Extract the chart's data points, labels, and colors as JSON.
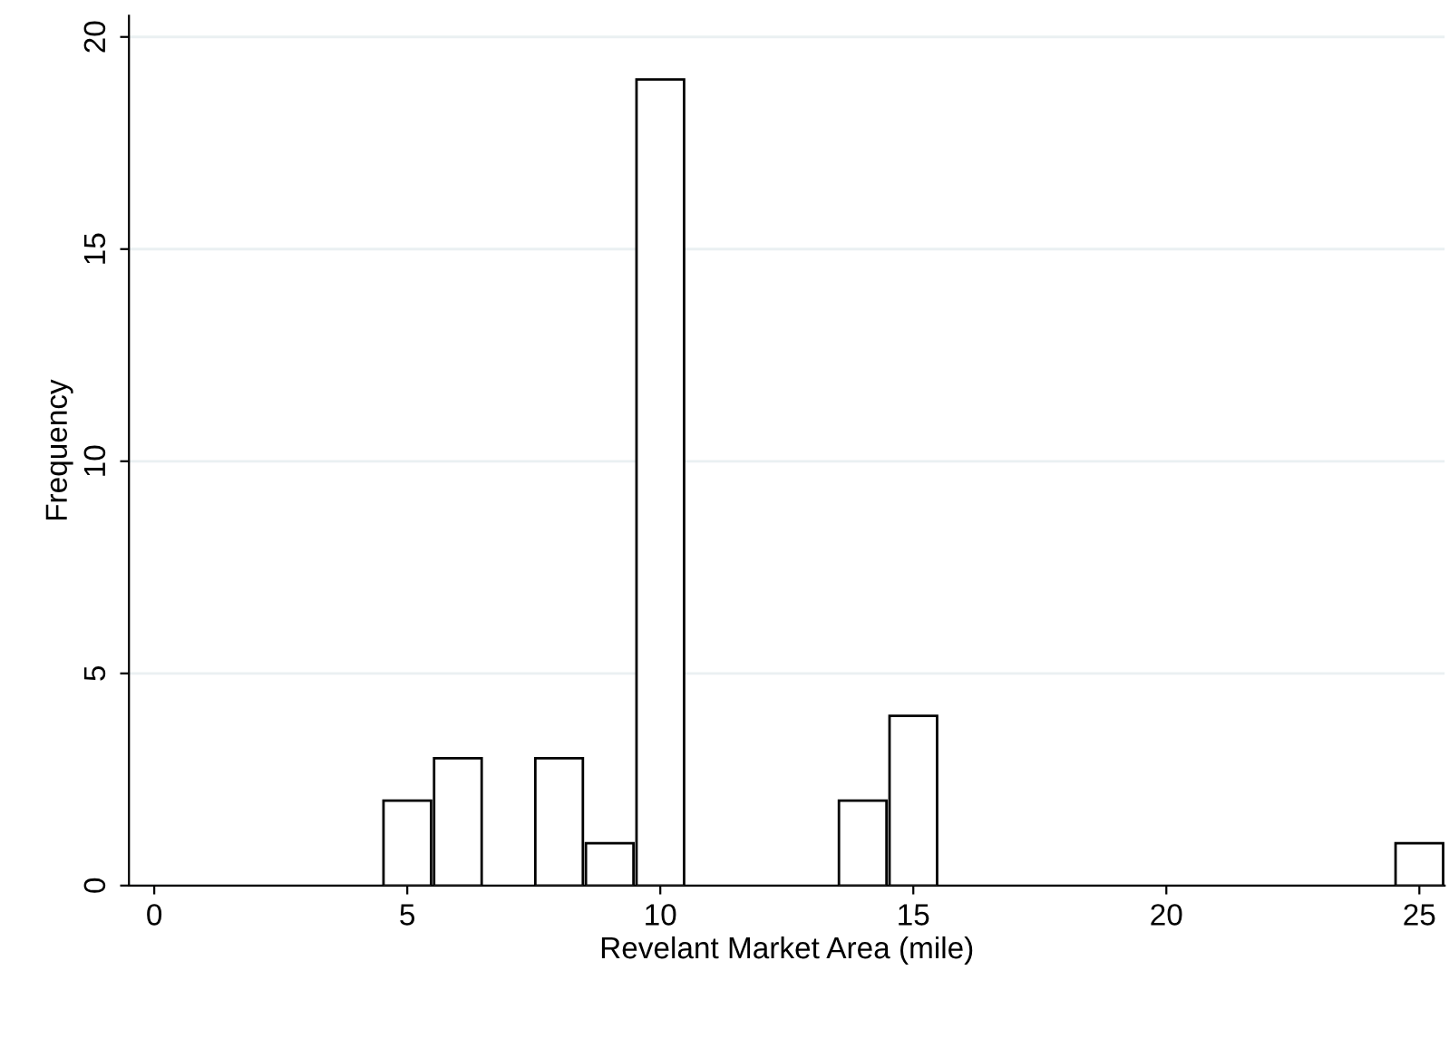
{
  "chart_data": {
    "type": "histogram",
    "xlabel": "Revelant Market Area (mile)",
    "ylabel": "Frequency",
    "bins": [
      4.5,
      5.5,
      6.5,
      7.5,
      8.5,
      9.5,
      10.5,
      11.5,
      12.5,
      13.5,
      14.5,
      15.5,
      16.5,
      17.5,
      18.5,
      19.5,
      20.5,
      21.5,
      22.5,
      23.5,
      24.5,
      25.5
    ],
    "values": [
      2,
      3,
      0,
      3,
      1,
      19,
      0,
      0,
      0,
      2,
      4,
      0,
      0,
      0,
      0,
      0,
      0,
      0,
      0,
      0,
      1
    ],
    "color": "#ffffff",
    "xlim": [
      -0.5,
      25.5
    ],
    "xticks": [
      0,
      5,
      10,
      15,
      20,
      25
    ],
    "ylim": [
      0,
      20.5
    ],
    "yticks": [
      0,
      5,
      10,
      15,
      20
    ],
    "grid": "y"
  }
}
